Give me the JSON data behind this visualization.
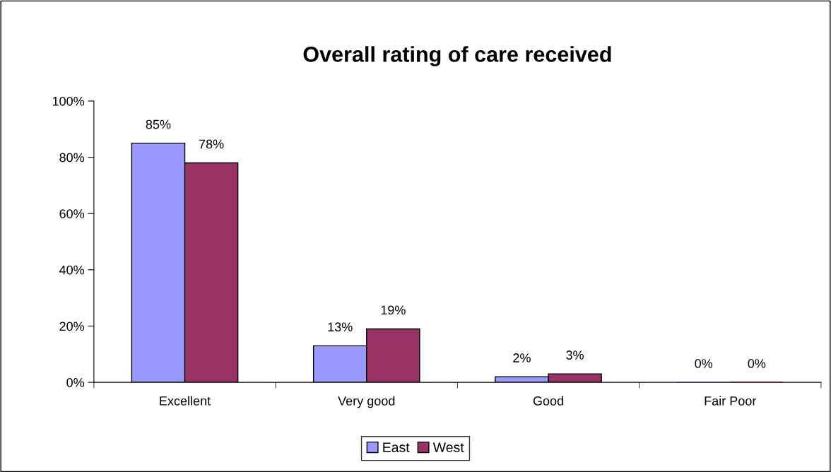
{
  "chart_data": {
    "type": "bar",
    "title": "Overall rating of care received",
    "categories": [
      "Excellent",
      "Very good",
      "Good",
      "Fair Poor"
    ],
    "series": [
      {
        "name": "East",
        "color": "#9999ff",
        "values": [
          85,
          13,
          2,
          0
        ],
        "value_labels": [
          "85%",
          "13%",
          "2%",
          "0%"
        ]
      },
      {
        "name": "West",
        "color": "#993366",
        "values": [
          78,
          19,
          3,
          0
        ],
        "value_labels": [
          "78%",
          "19%",
          "3%",
          "0%"
        ]
      }
    ],
    "ylim": [
      0,
      100
    ],
    "yticks": [
      {
        "value": 0,
        "label": "0%"
      },
      {
        "value": 20,
        "label": "20%"
      },
      {
        "value": 40,
        "label": "40%"
      },
      {
        "value": 60,
        "label": "60%"
      },
      {
        "value": 80,
        "label": "80%"
      },
      {
        "value": 100,
        "label": "100%"
      }
    ],
    "grid": false,
    "legend": "bottom"
  }
}
